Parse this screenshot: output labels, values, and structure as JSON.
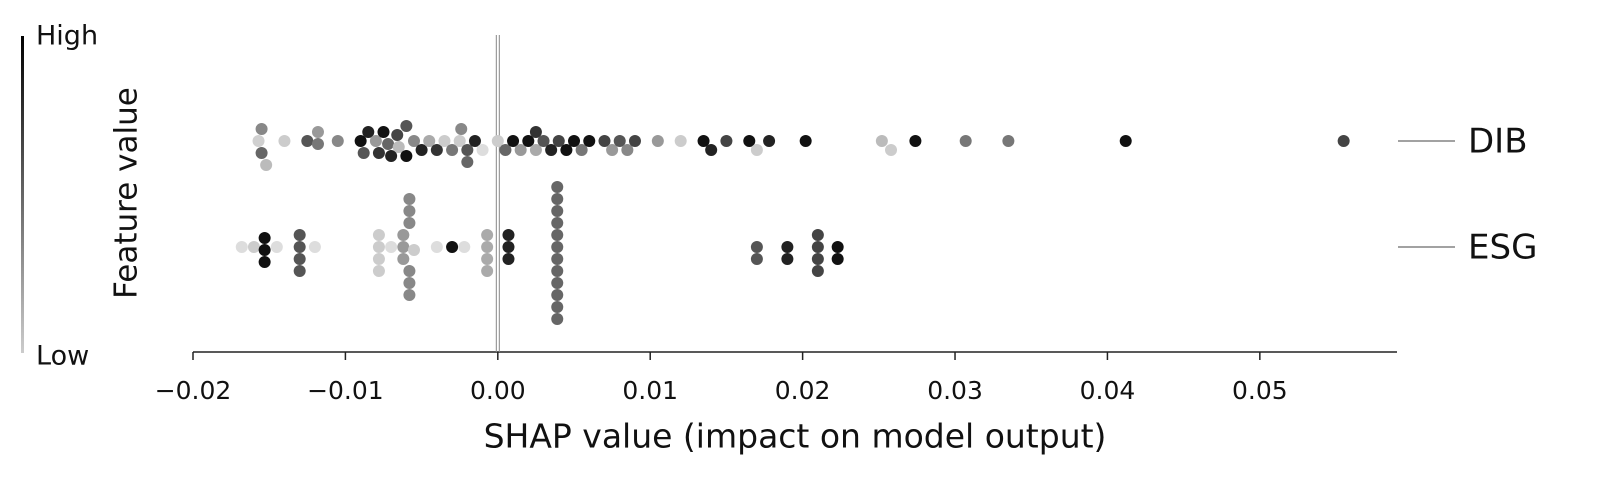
{
  "chart_data": {
    "type": "beeswarm",
    "xlabel": "SHAP value (impact on model output)",
    "colorbar_label": "Feature value",
    "colorbar_high": "High",
    "colorbar_low": "Low",
    "xlim": [
      -0.02,
      0.059
    ],
    "xticks": [
      {
        "value": -0.02,
        "label": "−0.02"
      },
      {
        "value": -0.01,
        "label": "−0.01"
      },
      {
        "value": 0,
        "label": "0.00"
      },
      0.01,
      0.02,
      0.03,
      0.04,
      0.05
    ],
    "features": [
      {
        "name": "DIB",
        "x": [
          -0.0157,
          -0.0155,
          -0.0155,
          -0.0152,
          -0.014,
          -0.0125,
          -0.0118,
          -0.0118,
          -0.0105,
          -0.009,
          -0.0088,
          -0.0085,
          -0.008,
          -0.0078,
          -0.0075,
          -0.0072,
          -0.007,
          -0.0066,
          -0.0065,
          -0.006,
          -0.006,
          -0.0055,
          -0.005,
          -0.0045,
          -0.004,
          -0.0035,
          -0.003,
          -0.0025,
          -0.0024,
          -0.002,
          -0.002,
          -0.0015,
          -0.001,
          0.0,
          0.0005,
          0.001,
          0.0015,
          0.002,
          0.0025,
          0.0025,
          0.003,
          0.0035,
          0.004,
          0.0045,
          0.005,
          0.0055,
          0.006,
          0.007,
          0.0075,
          0.008,
          0.0085,
          0.009,
          0.0105,
          0.012,
          0.0135,
          0.014,
          0.015,
          0.0165,
          0.017,
          0.0178,
          0.0202,
          0.0252,
          0.0258,
          0.0274,
          0.0307,
          0.0335,
          0.0412,
          0.0555
        ],
        "colors": [
          "#d0d0d0",
          "#666",
          "#888",
          "#bbb",
          "#ccc",
          "#555",
          "#777",
          "#999",
          "#888",
          "#111",
          "#555",
          "#222",
          "#999",
          "#333",
          "#111",
          "#666",
          "#222",
          "#444",
          "#bbb",
          "#111",
          "#555",
          "#888",
          "#222",
          "#aaa",
          "#333",
          "#ccc",
          "#777",
          "#ccc",
          "#888",
          "#555",
          "#666",
          "#222",
          "#ddd",
          "#ccc",
          "#666",
          "#111",
          "#999",
          "#111",
          "#aaa",
          "#333",
          "#555",
          "#222",
          "#444",
          "#111",
          "#111",
          "#777",
          "#111",
          "#444",
          "#999",
          "#555",
          "#888",
          "#444",
          "#999",
          "#ccc",
          "#111",
          "#222",
          "#444",
          "#111",
          "#ccc",
          "#222",
          "#111",
          "#bbb",
          "#ccc",
          "#111",
          "#777",
          "#777",
          "#111",
          "#444"
        ]
      },
      {
        "name": "ESG",
        "x": [
          -0.0168,
          -0.016,
          -0.0153,
          -0.0153,
          -0.0153,
          -0.0145,
          -0.013,
          -0.013,
          -0.013,
          -0.013,
          -0.012,
          -0.0078,
          -0.0078,
          -0.0078,
          -0.0078,
          -0.007,
          -0.0062,
          -0.0062,
          -0.0062,
          -0.0058,
          -0.0058,
          -0.0058,
          -0.0058,
          -0.0058,
          -0.0058,
          -0.0055,
          -0.004,
          -0.003,
          -0.0022,
          -0.0007,
          -0.0007,
          -0.0007,
          -0.0007,
          0.0007,
          0.0007,
          0.0007,
          0.0039,
          0.0039,
          0.0039,
          0.0039,
          0.0039,
          0.0039,
          0.0039,
          0.0039,
          0.0039,
          0.0039,
          0.0039,
          0.0039,
          0.017,
          0.017,
          0.019,
          0.019,
          0.021,
          0.021,
          0.021,
          0.021,
          0.0223,
          0.0223
        ],
        "colors": [
          "#ddd",
          "#ccc",
          "#111",
          "#111",
          "#111",
          "#ddd",
          "#555",
          "#555",
          "#555",
          "#555",
          "#ddd",
          "#ccc",
          "#ccc",
          "#ccc",
          "#ccc",
          "#ddd",
          "#999",
          "#999",
          "#999",
          "#888",
          "#888",
          "#888",
          "#888",
          "#888",
          "#888",
          "#ccc",
          "#ddd",
          "#111",
          "#ddd",
          "#aaa",
          "#aaa",
          "#aaa",
          "#aaa",
          "#222",
          "#222",
          "#222",
          "#666",
          "#666",
          "#666",
          "#666",
          "#666",
          "#666",
          "#666",
          "#666",
          "#666",
          "#666",
          "#666",
          "#666",
          "#555",
          "#555",
          "#222",
          "#222",
          "#444",
          "#444",
          "#444",
          "#444",
          "#111",
          "#111"
        ]
      }
    ]
  }
}
